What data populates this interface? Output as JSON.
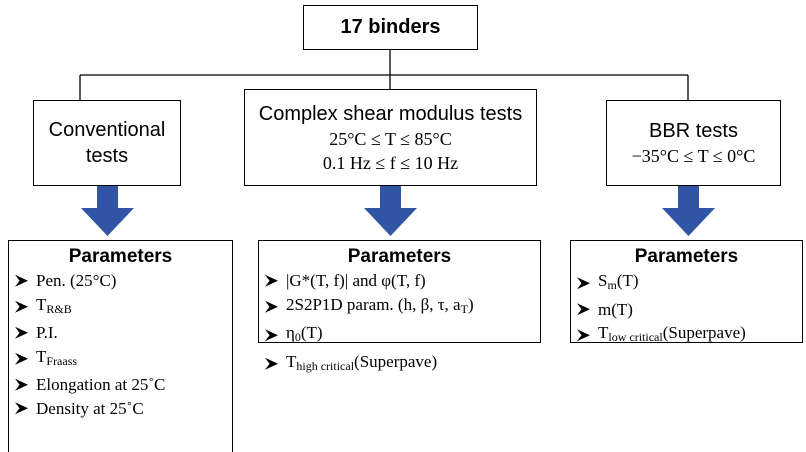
{
  "root": {
    "label": "17 binders"
  },
  "columns": [
    {
      "title": "Conventional tests",
      "conditions": [],
      "parameters": {
        "heading": "Parameters",
        "items": [
          {
            "text": "Pen. (25°C)"
          },
          {
            "text": "T",
            "sub": "R&B"
          },
          {
            "text": "P.I."
          },
          {
            "text": "T",
            "sub": "Fraass"
          },
          {
            "text": "Elongation at 25˚C"
          },
          {
            "text": "Density at 25˚C"
          }
        ]
      }
    },
    {
      "title": "Complex shear modulus tests",
      "conditions": [
        "25°C ≤ T ≤ 85°C",
        "0.1 Hz ≤ f ≤ 10 Hz"
      ],
      "parameters": {
        "heading": "Parameters",
        "items": [
          {
            "text": "|G*(T, f)| and φ(T, f)"
          },
          {
            "text": "2S2P1D param. (h, β, τ, a",
            "sub": "T",
            "after": ")"
          },
          {
            "text": "η",
            "sub": "0",
            "after": "(T)"
          },
          {
            "text": "T",
            "sub": "high critical",
            "after": "(Superpave)"
          }
        ]
      }
    },
    {
      "title": "BBR tests",
      "conditions": [
        "−35°C ≤ T ≤ 0°C"
      ],
      "parameters": {
        "heading": "Parameters",
        "items": [
          {
            "text": "S",
            "sub": "m",
            "after": "(T)"
          },
          {
            "text": "m(T)"
          },
          {
            "text": "T",
            "sub": "low critical",
            "after": "(Superpave)"
          }
        ]
      }
    }
  ]
}
